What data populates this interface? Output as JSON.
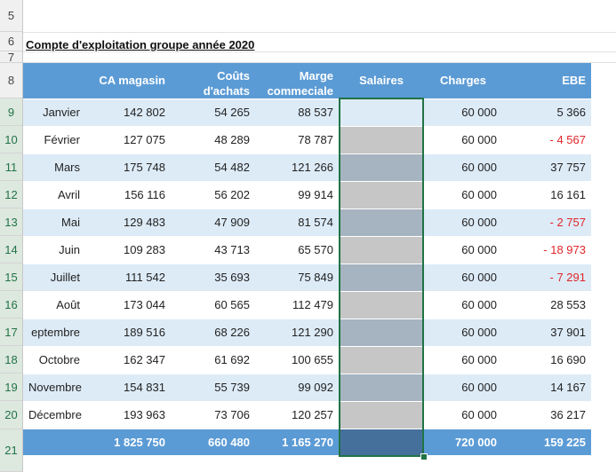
{
  "row_numbers": [
    "5",
    "6",
    "7",
    "8",
    "9",
    "10",
    "11",
    "12",
    "13",
    "14",
    "15",
    "16",
    "17",
    "18",
    "19",
    "20",
    "21"
  ],
  "sheet": {
    "title": "Compte d'exploitation groupe année 2020",
    "headers": {
      "month": "",
      "ca": "CA magasin",
      "couts_line1": "Coûts",
      "couts_line2": "d'achats",
      "marge_line1": "Marge",
      "marge_line2": "commeciale",
      "salaires": "Salaires",
      "charges": "Charges",
      "ebe": "EBE"
    },
    "rows": [
      {
        "month": "Janvier",
        "ca": "142 802",
        "couts": "54 265",
        "marge": "88 537",
        "salaires": "",
        "charges": "60 000",
        "ebe": "5 366",
        "negative": false
      },
      {
        "month": "Février",
        "ca": "127 075",
        "couts": "48 289",
        "marge": "78 787",
        "salaires": "",
        "charges": "60 000",
        "ebe": "- 4 567",
        "negative": true
      },
      {
        "month": "Mars",
        "ca": "175 748",
        "couts": "54 482",
        "marge": "121 266",
        "salaires": "",
        "charges": "60 000",
        "ebe": "37 757",
        "negative": false
      },
      {
        "month": "Avril",
        "ca": "156 116",
        "couts": "56 202",
        "marge": "99 914",
        "salaires": "",
        "charges": "60 000",
        "ebe": "16 161",
        "negative": false
      },
      {
        "month": "Mai",
        "ca": "129 483",
        "couts": "47 909",
        "marge": "81 574",
        "salaires": "",
        "charges": "60 000",
        "ebe": "- 2 757",
        "negative": true
      },
      {
        "month": "Juin",
        "ca": "109 283",
        "couts": "43 713",
        "marge": "65 570",
        "salaires": "",
        "charges": "60 000",
        "ebe": "- 18 973",
        "negative": true
      },
      {
        "month": "Juillet",
        "ca": "111 542",
        "couts": "35 693",
        "marge": "75 849",
        "salaires": "",
        "charges": "60 000",
        "ebe": "- 7 291",
        "negative": true
      },
      {
        "month": "Août",
        "ca": "173 044",
        "couts": "60 565",
        "marge": "112 479",
        "salaires": "",
        "charges": "60 000",
        "ebe": "28 553",
        "negative": false
      },
      {
        "month": "eptembre",
        "ca": "189 516",
        "couts": "68 226",
        "marge": "121 290",
        "salaires": "",
        "charges": "60 000",
        "ebe": "37 901",
        "negative": false
      },
      {
        "month": "Octobre",
        "ca": "162 347",
        "couts": "61 692",
        "marge": "100 655",
        "salaires": "",
        "charges": "60 000",
        "ebe": "16 690",
        "negative": false
      },
      {
        "month": "Novembre",
        "ca": "154 831",
        "couts": "55 739",
        "marge": "99 092",
        "salaires": "",
        "charges": "60 000",
        "ebe": "14 167",
        "negative": false
      },
      {
        "month": "Décembre",
        "ca": "193 963",
        "couts": "73 706",
        "marge": "120 257",
        "salaires": "",
        "charges": "60 000",
        "ebe": "36 217",
        "negative": false
      }
    ],
    "total": {
      "month": "",
      "ca": "1 825 750",
      "couts": "660 480",
      "marge": "1 165 270",
      "salaires": "",
      "charges": "720 000",
      "ebe": "159 225"
    }
  },
  "colors": {
    "header_bg": "#5b9bd5",
    "band_bg": "#ddebf7",
    "negative": "#e0262b",
    "selection": "#217346"
  }
}
